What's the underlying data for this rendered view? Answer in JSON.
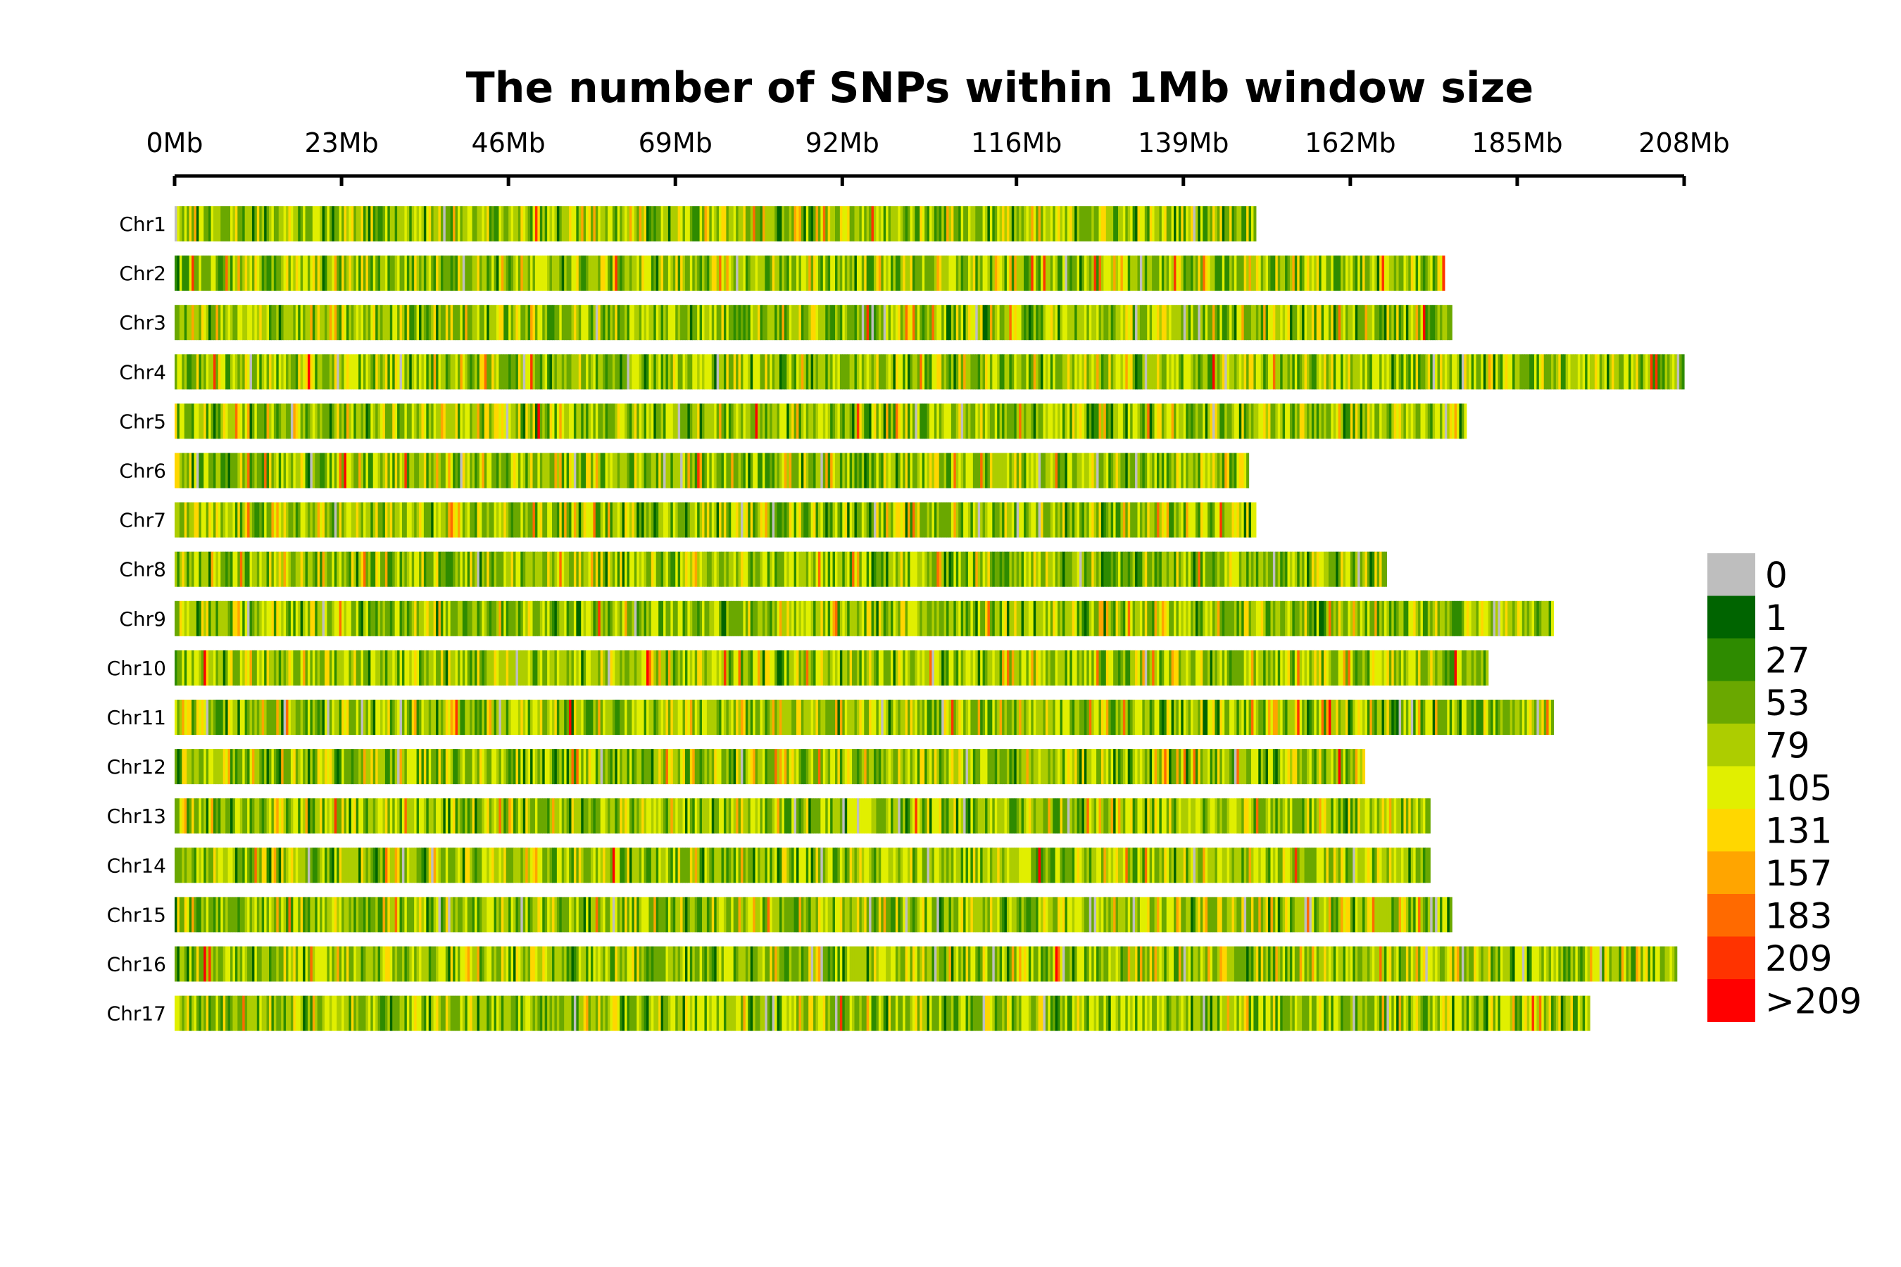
{
  "chart_data": {
    "type": "heatmap",
    "title": "The number of SNPs within 1Mb window size",
    "x_axis": {
      "unit": "Mb",
      "range": [
        0,
        208
      ],
      "ticks": [
        0,
        23,
        46,
        69,
        92,
        116,
        139,
        162,
        185,
        208
      ],
      "tick_labels": [
        "0Mb",
        "23Mb",
        "46Mb",
        "69Mb",
        "92Mb",
        "116Mb",
        "139Mb",
        "162Mb",
        "185Mb",
        "208Mb"
      ]
    },
    "window_size_mb": 1,
    "chromosomes": [
      {
        "name": "Chr1",
        "length_mb": 149
      },
      {
        "name": "Chr2",
        "length_mb": 175
      },
      {
        "name": "Chr3",
        "length_mb": 176
      },
      {
        "name": "Chr4",
        "length_mb": 208
      },
      {
        "name": "Chr5",
        "length_mb": 178
      },
      {
        "name": "Chr6",
        "length_mb": 148
      },
      {
        "name": "Chr7",
        "length_mb": 149
      },
      {
        "name": "Chr8",
        "length_mb": 167
      },
      {
        "name": "Chr9",
        "length_mb": 190
      },
      {
        "name": "Chr10",
        "length_mb": 181
      },
      {
        "name": "Chr11",
        "length_mb": 190
      },
      {
        "name": "Chr12",
        "length_mb": 164
      },
      {
        "name": "Chr13",
        "length_mb": 173
      },
      {
        "name": "Chr14",
        "length_mb": 173
      },
      {
        "name": "Chr15",
        "length_mb": 176
      },
      {
        "name": "Chr16",
        "length_mb": 207
      },
      {
        "name": "Chr17",
        "length_mb": 195
      }
    ],
    "legend": {
      "position": "right",
      "bins": [
        {
          "label": "0",
          "color": "#bebebe"
        },
        {
          "label": "1",
          "color": "#006400"
        },
        {
          "label": "27",
          "color": "#2e8b00"
        },
        {
          "label": "53",
          "color": "#6aa800"
        },
        {
          "label": "79",
          "color": "#adcd00"
        },
        {
          "label": "105",
          "color": "#e1ef00"
        },
        {
          "label": "131",
          "color": "#ffd700"
        },
        {
          "label": "157",
          "color": "#ffa500"
        },
        {
          "label": "183",
          "color": "#ff6a00"
        },
        {
          "label": "209",
          "color": "#ff3300"
        },
        {
          "label": ">209",
          "color": "#ff0000"
        }
      ]
    }
  }
}
